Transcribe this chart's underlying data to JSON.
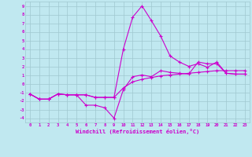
{
  "bg_color": "#c0e8f0",
  "grid_color": "#a0c8d0",
  "line_color": "#cc00cc",
  "xlabel": "Windchill (Refroidissement éolien,°C)",
  "xlim": [
    -0.5,
    23.5
  ],
  "ylim": [
    -4.5,
    9.5
  ],
  "xticks": [
    0,
    1,
    2,
    3,
    4,
    5,
    6,
    7,
    8,
    9,
    10,
    11,
    12,
    13,
    14,
    15,
    16,
    17,
    18,
    19,
    20,
    21,
    22,
    23
  ],
  "yticks": [
    -4,
    -3,
    -2,
    -1,
    0,
    1,
    2,
    3,
    4,
    5,
    6,
    7,
    8,
    9
  ],
  "series": [
    {
      "x": [
        0,
        1,
        2,
        3,
        4,
        5,
        6,
        7,
        8,
        9,
        10,
        11,
        12,
        13,
        14,
        15,
        16,
        17,
        18,
        19,
        20,
        21,
        22,
        23
      ],
      "y": [
        -1.2,
        -1.8,
        -1.8,
        -1.2,
        -1.3,
        -1.3,
        -1.3,
        -1.6,
        -1.6,
        -1.6,
        -0.5,
        0.2,
        0.5,
        0.7,
        0.9,
        1.0,
        1.1,
        1.2,
        1.3,
        1.4,
        1.5,
        1.5,
        1.5,
        1.5
      ]
    },
    {
      "x": [
        0,
        1,
        2,
        3,
        4,
        5,
        6,
        7,
        8,
        9,
        10,
        11,
        12,
        13,
        14,
        15,
        16,
        17,
        18,
        19,
        20,
        21,
        22,
        23
      ],
      "y": [
        -1.2,
        -1.8,
        -1.8,
        -1.2,
        -1.3,
        -1.3,
        -1.3,
        -1.6,
        -1.6,
        -1.6,
        4.0,
        7.7,
        9.0,
        7.3,
        5.5,
        3.2,
        2.5,
        2.0,
        2.3,
        1.9,
        2.5,
        1.2,
        1.1,
        1.1
      ]
    },
    {
      "x": [
        0,
        1,
        2,
        3,
        4,
        5,
        6,
        7,
        8,
        9,
        10,
        11,
        12,
        13,
        14,
        15,
        16,
        17,
        18,
        19,
        20,
        21,
        22,
        23
      ],
      "y": [
        -1.2,
        -1.8,
        -1.8,
        -1.2,
        -1.3,
        -1.3,
        -2.5,
        -2.5,
        -2.8,
        -4.0,
        -0.7,
        0.8,
        1.0,
        0.8,
        1.5,
        1.3,
        1.2,
        1.1,
        2.5,
        2.3,
        2.3,
        1.2,
        1.1,
        1.1
      ]
    }
  ]
}
